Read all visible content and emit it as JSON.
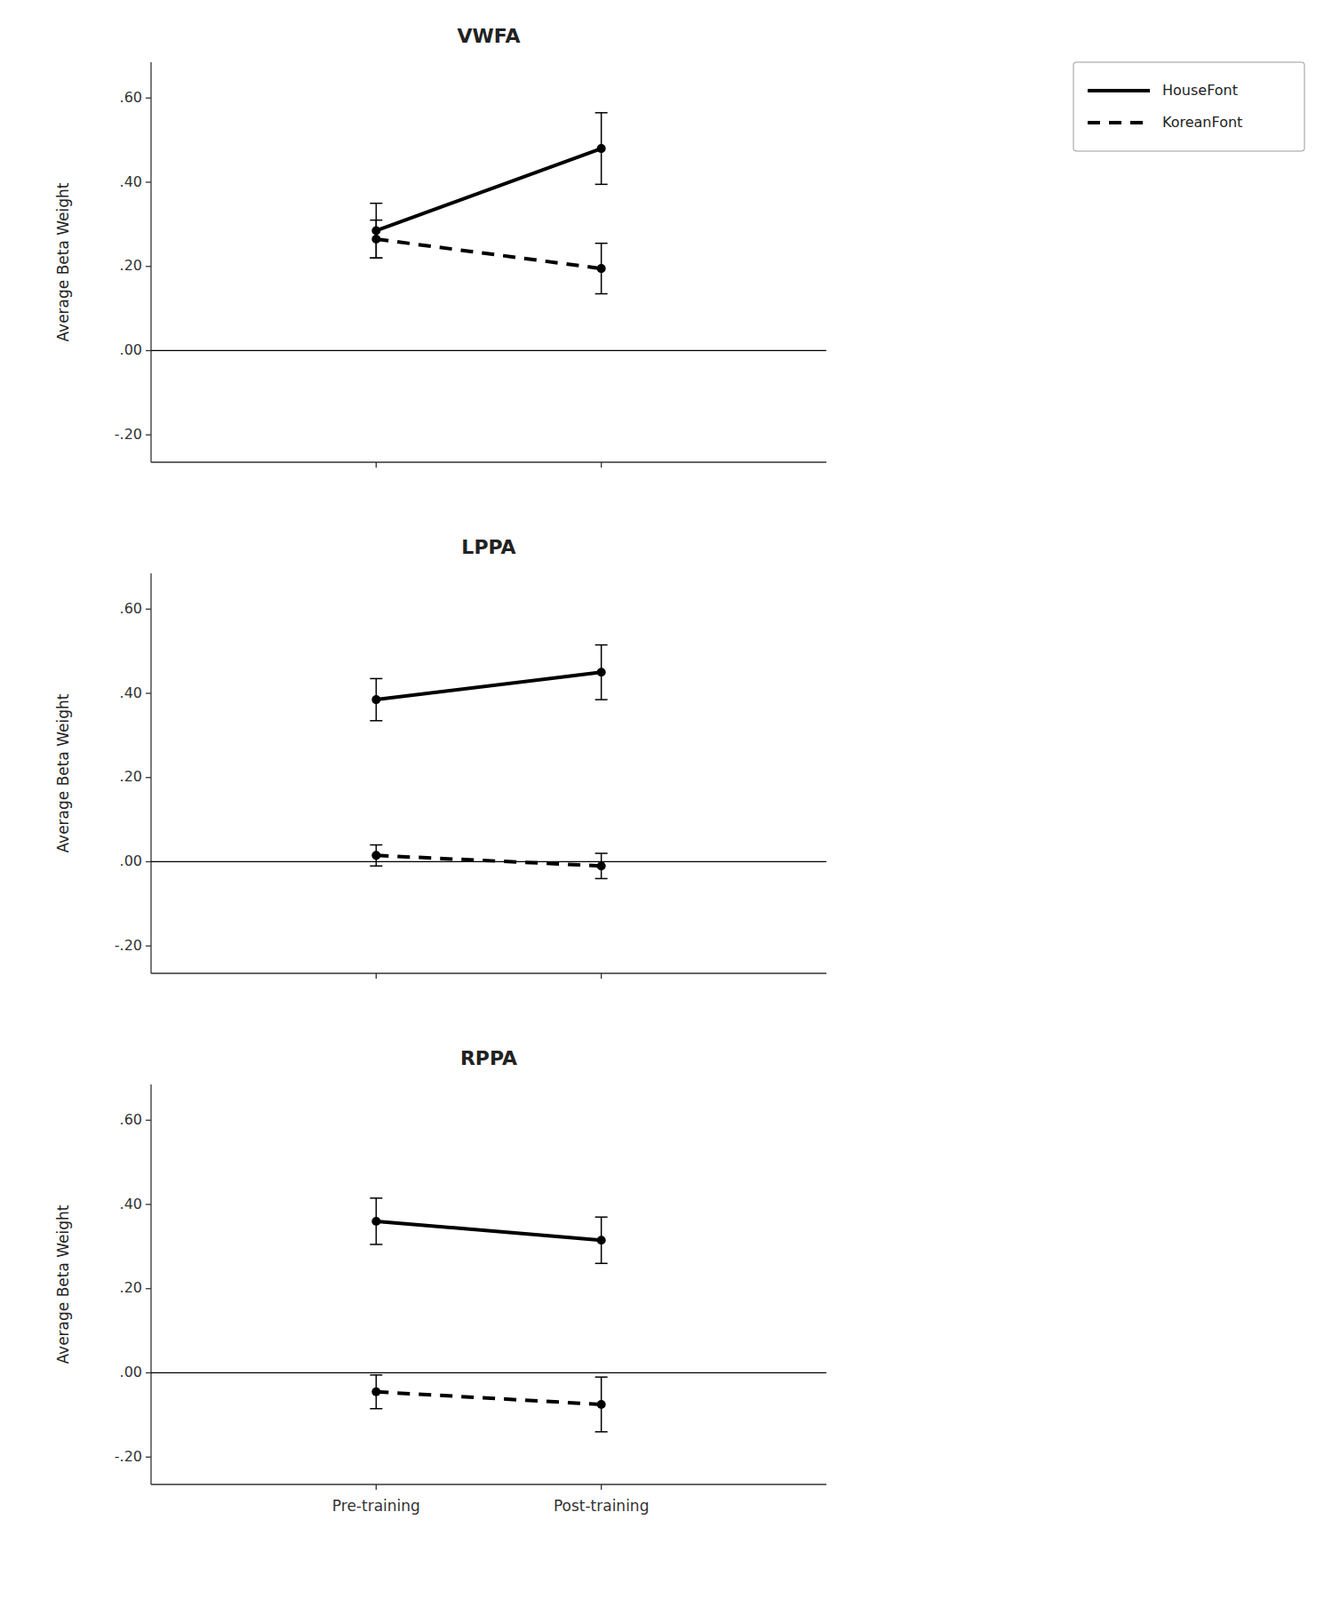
{
  "chart_data": [
    {
      "type": "line",
      "title": "VWFA",
      "y_label": "Average Beta Weight",
      "categories": [
        "Pre-training",
        "Post-training"
      ],
      "series": [
        {
          "name": "HouseFont",
          "color": "black",
          "line_style": "solid",
          "marker": "circle",
          "values": [
            0.285,
            0.48
          ],
          "errors": [
            0.065,
            0.085
          ]
        },
        {
          "name": "KoreanFont",
          "color": "black",
          "line_style": "dashed",
          "marker": "circle",
          "values": [
            0.265,
            0.195
          ],
          "errors": [
            0.045,
            0.06
          ]
        }
      ],
      "hlines": [
        0
      ],
      "ylim": [
        -0.265,
        0.685
      ],
      "yticks": [
        {
          "value": -0.2,
          "label": "-.20"
        },
        {
          "value": 0.0,
          "label": ".00"
        },
        {
          "value": 0.2,
          "label": ".20"
        },
        {
          "value": 0.4,
          "label": ".40"
        },
        {
          "value": 0.6,
          "label": ".60"
        }
      ],
      "tick_labels": "y",
      "legend": "upper right",
      "grid": false
    },
    {
      "type": "line",
      "title": "LPPA",
      "y_label": "Average Beta Weight",
      "categories": [
        "Pre-training",
        "Post-training"
      ],
      "series": [
        {
          "color": "black",
          "line_style": "solid",
          "marker": "circle",
          "values": [
            0.385,
            0.45
          ],
          "errors": [
            0.05,
            0.065
          ]
        },
        {
          "color": "black",
          "line_style": "dashed",
          "marker": "circle",
          "values": [
            0.015,
            -0.01
          ],
          "errors": [
            0.025,
            0.03
          ]
        }
      ],
      "hlines": [
        0
      ],
      "ylim": [
        -0.265,
        0.685
      ],
      "yticks": [
        {
          "value": -0.2,
          "label": "-.20"
        },
        {
          "value": 0.0,
          "label": ".00"
        },
        {
          "value": 0.2,
          "label": ".20"
        },
        {
          "value": 0.4,
          "label": ".40"
        },
        {
          "value": 0.6,
          "label": ".60"
        }
      ],
      "tick_labels": "y",
      "grid": false
    },
    {
      "type": "line",
      "title": "RPPA",
      "y_label": "Average Beta Weight",
      "categories": [
        "Pre-training",
        "Post-training"
      ],
      "series": [
        {
          "color": "black",
          "line_style": "solid",
          "marker": "circle",
          "values": [
            0.36,
            0.315
          ],
          "errors": [
            0.055,
            0.055
          ]
        },
        {
          "color": "black",
          "line_style": "dashed",
          "marker": "circle",
          "values": [
            -0.045,
            -0.075
          ],
          "errors": [
            0.04,
            0.065
          ]
        }
      ],
      "hlines": [
        0
      ],
      "ylim": [
        -0.265,
        0.685
      ],
      "yticks": [
        {
          "value": -0.2,
          "label": "-.20"
        },
        {
          "value": 0.0,
          "label": ".00"
        },
        {
          "value": 0.2,
          "label": ".20"
        },
        {
          "value": 0.4,
          "label": ".40"
        },
        {
          "value": 0.6,
          "label": ".60"
        }
      ],
      "grid": false
    }
  ]
}
